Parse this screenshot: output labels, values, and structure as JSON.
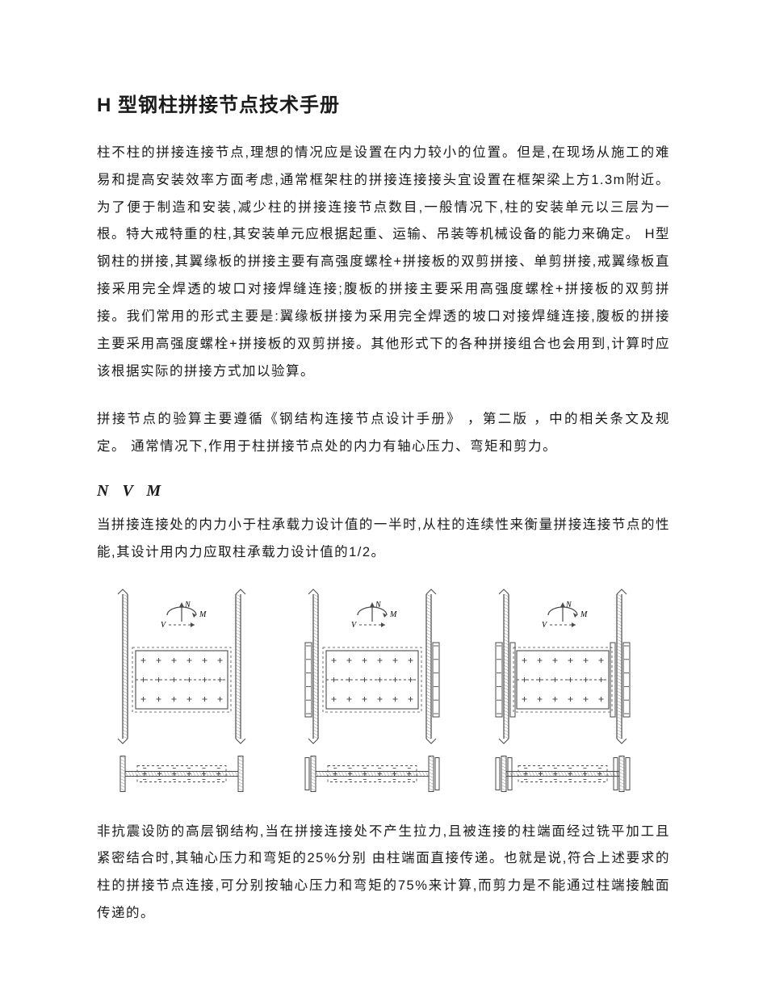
{
  "title": "H 型钢柱拼接节点技术手册",
  "p1": "柱不柱的拼接连接节点,理想的情况应是设置在内力较小的位置。但是,在现场从施工的难易和提高安装效率方面考虑,通常框架柱的拼接连接接头宜设置在框架梁上方1.3m附近。为了便于制造和安装,减少柱的拼接连接节点数目,一般情况下,柱的安装单元以三层为一根。特大戒特重的柱,其安装单元应根据起重、运输、吊装等机械设备的能力来确定。 H型钢柱的拼接,其翼缘板的拼接主要有高强度螺栓+拼接板的双剪拼接、单剪拼接,戒翼缘板直接采用完全焊透的坡口对接焊缝连接;腹板的拼接主要采用高强度螺栓+拼接板的双剪拼接。我们常用的形式主要是:翼缘板拼接为采用完全焊透的坡口对接焊缝连接,腹板的拼接主要采用高强度螺栓+拼接板的双剪拼接。其他形式下的各种拼接组合也会用到,计算时应该根据实际的拼接方式加以验算。",
  "p2": "拼接节点的验算主要遵循《钢结构连接节点设计手册》 ，第二版 ，中的相关条文及规定。 通常情况下,作用于柱拼接节点处的内力有轴心压力、弯矩和剪力。",
  "formula": "N V M",
  "p3": "当拼接连接处的内力小于柱承载力设计值的一半时,从柱的连续性来衡量拼接连接节点的性能,其设计用内力应取柱承载力设计值的1/2。",
  "p4": "非抗震设防的高层钢结构,当在拼接连接处不产生拉力,且被连接的柱端面经过铣平加工且紧密结合时,其轴心压力和弯矩的25%分别 由柱端面直接传递。也就是说,符合上述要求的柱的拼接节点连接,可分别按轴心压力和弯矩的75%来计算,而剪力是不能通过柱端接触面传递的。",
  "diagram": {
    "type": "engineering-elevation-and-section",
    "panel_count": 3,
    "elev_w": 210,
    "elev_h": 195,
    "sect_w": 210,
    "sect_h": 55,
    "stroke": "#4a4a4a",
    "hatch": "#6a6a6a",
    "dash": "3,3",
    "bolt_rows": 3,
    "bolt_cols": 6,
    "force_labels": {
      "N": "N",
      "V": "V",
      "M": "M"
    },
    "panel_variants": [
      "no-flange-plate",
      "flange-plate-outer",
      "flange-plate-both"
    ]
  },
  "colors": {
    "text": "#1a1a1a",
    "bg": "#ffffff"
  },
  "fonts": {
    "body_size_pt": 12,
    "title_size_pt": 18,
    "line_height": 2.05
  }
}
